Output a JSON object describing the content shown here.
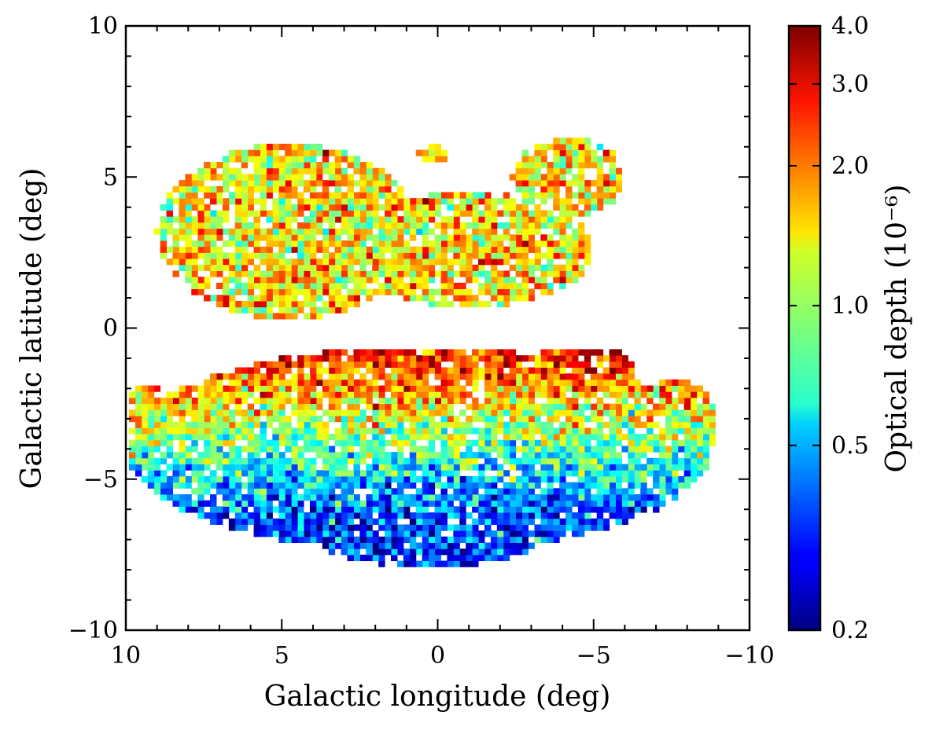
{
  "chart_data": {
    "type": "heatmap",
    "xlabel": "Galactic longitude (deg)",
    "ylabel": "Galactic latitude (deg)",
    "xlim": [
      10,
      -10
    ],
    "ylim": [
      -10,
      10
    ],
    "x_ticks": [
      10,
      5,
      0,
      -5,
      -10
    ],
    "x_tick_labels": [
      "10",
      "5",
      "0",
      "−5",
      "−10"
    ],
    "y_ticks": [
      10,
      5,
      0,
      -5,
      -10
    ],
    "y_tick_labels": [
      "10",
      "5",
      "0",
      "−5",
      "−10"
    ],
    "grid": false,
    "colorscale": "jet",
    "log_color_scale": true,
    "colorbar": {
      "label": "Optical depth (10⁻⁶)",
      "range": [
        0.2,
        4.0
      ],
      "ticks": [
        0.2,
        0.5,
        1.0,
        2.0,
        3.0,
        4.0
      ],
      "tick_labels": [
        "0.2",
        "0.5",
        "1.0",
        "2.0",
        "3.0",
        "4.0"
      ]
    },
    "pixel_size_deg": 0.2,
    "regions": [
      {
        "name": "north",
        "l_range": [
          -5.2,
          8.7
        ],
        "b_range": [
          0.4,
          6.4
        ],
        "median_optical_depth_1e-6": 1.4
      },
      {
        "name": "south",
        "l_range": [
          -8.7,
          9.8
        ],
        "b_range": [
          -7.9,
          -0.5
        ],
        "optical_depth_near_b_minus1_1e-6": 2.5,
        "optical_depth_near_b_minus6_1e-6": 0.35
      }
    ]
  }
}
